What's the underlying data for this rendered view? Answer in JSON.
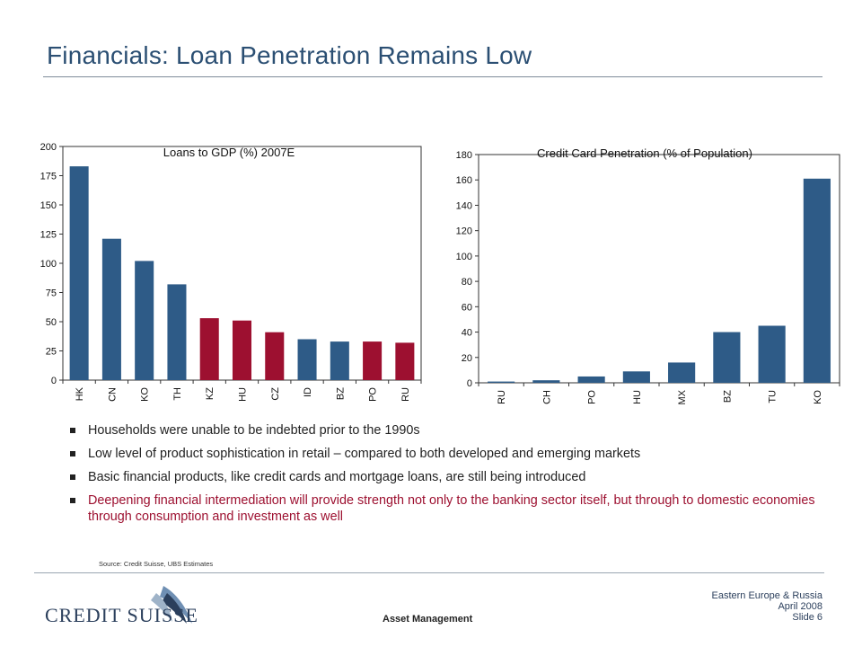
{
  "slide": {
    "title": "Financials: Loan Penetration Remains Low",
    "bullets": [
      "Households were unable to be indebted prior to the 1990s",
      "Low level of product sophistication in retail – compared to both developed and emerging markets",
      "Basic financial products, like credit cards and mortgage loans, are still being introduced",
      "Deepening financial intermediation will provide strength not only to the banking sector itself, but through to domestic economies through consumption and investment as well"
    ],
    "source": "Source: Credit Suisse, UBS Estimates",
    "logo_text": "CREDIT SUISSE",
    "footer_center": "Asset Management",
    "footer_right": [
      "Eastern Europe & Russia",
      "April 2008",
      "Slide 6"
    ]
  },
  "colors": {
    "title": "#2b4f73",
    "blue": "#2e5b87",
    "red": "#9d1030",
    "logo": "#2b3f5c"
  },
  "chart_data": [
    {
      "type": "bar",
      "title": "Loans to GDP (%) 2007E",
      "categories": [
        "HK",
        "CN",
        "KO",
        "TH",
        "KZ",
        "HU",
        "CZ",
        "ID",
        "BZ",
        "PO",
        "RU"
      ],
      "values": [
        183,
        121,
        102,
        82,
        53,
        51,
        41,
        35,
        33,
        33,
        32
      ],
      "bar_colors": [
        "blue",
        "blue",
        "blue",
        "blue",
        "red",
        "red",
        "red",
        "blue",
        "blue",
        "red",
        "red"
      ],
      "ylim": [
        0,
        200
      ],
      "yticks": [
        0,
        25,
        50,
        75,
        100,
        125,
        150,
        175,
        200
      ],
      "grid": false
    },
    {
      "type": "bar",
      "title": "Credit Card Penetration (% of Population)",
      "categories": [
        "RU",
        "CH",
        "PO",
        "HU",
        "MX",
        "BZ",
        "TU",
        "KO"
      ],
      "values": [
        1,
        2,
        5,
        9,
        16,
        40,
        45,
        161
      ],
      "bar_colors": [
        "blue",
        "blue",
        "blue",
        "blue",
        "blue",
        "blue",
        "blue",
        "blue"
      ],
      "ylim": [
        0,
        180
      ],
      "yticks": [
        0,
        20,
        40,
        60,
        80,
        100,
        120,
        140,
        160,
        180
      ],
      "grid": false
    }
  ]
}
